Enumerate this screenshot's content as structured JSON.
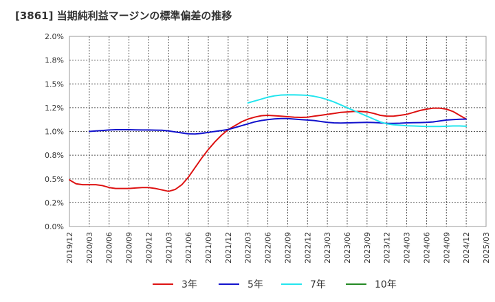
{
  "chart_data": {
    "title": "[3861]  当期純利益マージンの標準偏差の推移",
    "type": "line",
    "x_ticks": [
      "2019/12",
      "2020/03",
      "2020/06",
      "2020/09",
      "2020/12",
      "2021/03",
      "2021/06",
      "2021/09",
      "2021/12",
      "2022/03",
      "2022/06",
      "2022/09",
      "2022/12",
      "2023/03",
      "2023/06",
      "2023/09",
      "2023/12",
      "2024/03",
      "2024/06",
      "2024/09",
      "2024/12",
      "2025/03"
    ],
    "y_ticks": [
      "0.0%",
      "0.2%",
      "0.5%",
      "0.8%",
      "1.0%",
      "1.2%",
      "1.5%",
      "1.8%",
      "2.0%"
    ],
    "ylim": [
      0,
      2.0
    ],
    "grid": true,
    "legend_position": "bottom",
    "series": [
      {
        "name": "3年",
        "color": "#dd1111",
        "points": [
          [
            "2019/12",
            0.49
          ],
          [
            "2020/01",
            0.45
          ],
          [
            "2020/02",
            0.44
          ],
          [
            "2020/03",
            0.44
          ],
          [
            "2020/04",
            0.44
          ],
          [
            "2020/05",
            0.43
          ],
          [
            "2020/06",
            0.41
          ],
          [
            "2020/07",
            0.4
          ],
          [
            "2020/08",
            0.4
          ],
          [
            "2020/09",
            0.4
          ],
          [
            "2020/10",
            0.405
          ],
          [
            "2020/11",
            0.41
          ],
          [
            "2020/12",
            0.41
          ],
          [
            "2021/01",
            0.4
          ],
          [
            "2021/02",
            0.385
          ],
          [
            "2021/03",
            0.37
          ],
          [
            "2021/04",
            0.39
          ],
          [
            "2021/05",
            0.44
          ],
          [
            "2021/06",
            0.52
          ],
          [
            "2021/07",
            0.62
          ],
          [
            "2021/08",
            0.72
          ],
          [
            "2021/09",
            0.81
          ],
          [
            "2021/10",
            0.89
          ],
          [
            "2021/11",
            0.96
          ],
          [
            "2021/12",
            1.02
          ],
          [
            "2022/01",
            1.06
          ],
          [
            "2022/02",
            1.1
          ],
          [
            "2022/03",
            1.13
          ],
          [
            "2022/04",
            1.15
          ],
          [
            "2022/05",
            1.165
          ],
          [
            "2022/06",
            1.17
          ],
          [
            "2022/07",
            1.165
          ],
          [
            "2022/08",
            1.16
          ],
          [
            "2022/09",
            1.155
          ],
          [
            "2022/10",
            1.15
          ],
          [
            "2022/11",
            1.148
          ],
          [
            "2022/12",
            1.15
          ],
          [
            "2023/01",
            1.16
          ],
          [
            "2023/02",
            1.17
          ],
          [
            "2023/03",
            1.18
          ],
          [
            "2023/04",
            1.19
          ],
          [
            "2023/05",
            1.2
          ],
          [
            "2023/06",
            1.205
          ],
          [
            "2023/07",
            1.21
          ],
          [
            "2023/08",
            1.21
          ],
          [
            "2023/09",
            1.205
          ],
          [
            "2023/10",
            1.19
          ],
          [
            "2023/11",
            1.17
          ],
          [
            "2023/12",
            1.16
          ],
          [
            "2024/01",
            1.16
          ],
          [
            "2024/02",
            1.17
          ],
          [
            "2024/03",
            1.18
          ],
          [
            "2024/04",
            1.2
          ],
          [
            "2024/05",
            1.22
          ],
          [
            "2024/06",
            1.235
          ],
          [
            "2024/07",
            1.245
          ],
          [
            "2024/08",
            1.245
          ],
          [
            "2024/09",
            1.235
          ],
          [
            "2024/10",
            1.21
          ],
          [
            "2024/11",
            1.17
          ],
          [
            "2024/12",
            1.13
          ]
        ]
      },
      {
        "name": "5年",
        "color": "#1111cc",
        "points": [
          [
            "2020/03",
            1.0
          ],
          [
            "2020/04",
            1.005
          ],
          [
            "2020/05",
            1.01
          ],
          [
            "2020/06",
            1.015
          ],
          [
            "2020/07",
            1.018
          ],
          [
            "2020/08",
            1.018
          ],
          [
            "2020/09",
            1.018
          ],
          [
            "2020/10",
            1.016
          ],
          [
            "2020/11",
            1.015
          ],
          [
            "2020/12",
            1.015
          ],
          [
            "2021/01",
            1.014
          ],
          [
            "2021/02",
            1.012
          ],
          [
            "2021/03",
            1.005
          ],
          [
            "2021/04",
            0.995
          ],
          [
            "2021/05",
            0.985
          ],
          [
            "2021/06",
            0.975
          ],
          [
            "2021/07",
            0.973
          ],
          [
            "2021/08",
            0.98
          ],
          [
            "2021/09",
            0.99
          ],
          [
            "2021/10",
            1.0
          ],
          [
            "2021/11",
            1.01
          ],
          [
            "2021/12",
            1.02
          ],
          [
            "2022/01",
            1.04
          ],
          [
            "2022/02",
            1.06
          ],
          [
            "2022/03",
            1.08
          ],
          [
            "2022/04",
            1.1
          ],
          [
            "2022/05",
            1.115
          ],
          [
            "2022/06",
            1.125
          ],
          [
            "2022/07",
            1.132
          ],
          [
            "2022/08",
            1.135
          ],
          [
            "2022/09",
            1.135
          ],
          [
            "2022/10",
            1.13
          ],
          [
            "2022/11",
            1.125
          ],
          [
            "2022/12",
            1.12
          ],
          [
            "2023/01",
            1.115
          ],
          [
            "2023/02",
            1.105
          ],
          [
            "2023/03",
            1.095
          ],
          [
            "2023/04",
            1.09
          ],
          [
            "2023/05",
            1.088
          ],
          [
            "2023/06",
            1.09
          ],
          [
            "2023/07",
            1.092
          ],
          [
            "2023/08",
            1.094
          ],
          [
            "2023/09",
            1.095
          ],
          [
            "2023/10",
            1.094
          ],
          [
            "2023/11",
            1.09
          ],
          [
            "2023/12",
            1.085
          ],
          [
            "2024/01",
            1.085
          ],
          [
            "2024/02",
            1.087
          ],
          [
            "2024/03",
            1.09
          ],
          [
            "2024/04",
            1.092
          ],
          [
            "2024/05",
            1.093
          ],
          [
            "2024/06",
            1.095
          ],
          [
            "2024/07",
            1.1
          ],
          [
            "2024/08",
            1.11
          ],
          [
            "2024/09",
            1.12
          ],
          [
            "2024/10",
            1.125
          ],
          [
            "2024/11",
            1.128
          ],
          [
            "2024/12",
            1.13
          ]
        ]
      },
      {
        "name": "7年",
        "color": "#22e5ee",
        "points": [
          [
            "2022/03",
            1.3
          ],
          [
            "2022/04",
            1.32
          ],
          [
            "2022/05",
            1.34
          ],
          [
            "2022/06",
            1.36
          ],
          [
            "2022/07",
            1.375
          ],
          [
            "2022/08",
            1.383
          ],
          [
            "2022/09",
            1.385
          ],
          [
            "2022/10",
            1.385
          ],
          [
            "2022/11",
            1.383
          ],
          [
            "2022/12",
            1.38
          ],
          [
            "2023/01",
            1.37
          ],
          [
            "2023/02",
            1.355
          ],
          [
            "2023/03",
            1.335
          ],
          [
            "2023/04",
            1.31
          ],
          [
            "2023/05",
            1.28
          ],
          [
            "2023/06",
            1.25
          ],
          [
            "2023/07",
            1.22
          ],
          [
            "2023/08",
            1.19
          ],
          [
            "2023/09",
            1.16
          ],
          [
            "2023/10",
            1.13
          ],
          [
            "2023/11",
            1.1
          ],
          [
            "2023/12",
            1.08
          ],
          [
            "2024/01",
            1.07
          ],
          [
            "2024/02",
            1.065
          ],
          [
            "2024/03",
            1.06
          ],
          [
            "2024/04",
            1.058
          ],
          [
            "2024/05",
            1.055
          ],
          [
            "2024/06",
            1.053
          ],
          [
            "2024/07",
            1.052
          ],
          [
            "2024/08",
            1.053
          ],
          [
            "2024/09",
            1.055
          ],
          [
            "2024/10",
            1.058
          ],
          [
            "2024/11",
            1.058
          ],
          [
            "2024/12",
            1.055
          ]
        ]
      },
      {
        "name": "10年",
        "color": "#228822",
        "points": []
      }
    ]
  }
}
